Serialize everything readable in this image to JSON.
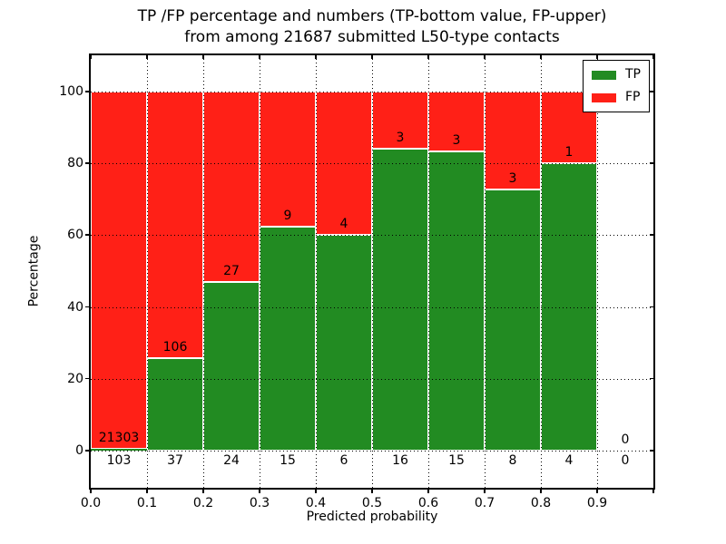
{
  "chart_data": {
    "type": "bar",
    "stacked": true,
    "title_line1": "TP /FP percentage and numbers (TP-bottom value, FP-upper)",
    "title_line2": "from among 21687 submitted L50-type contacts",
    "xlabel": "Predicted probability",
    "ylabel": "Percentage",
    "x_ticks": [
      "0.0",
      "0.1",
      "0.2",
      "0.3",
      "0.4",
      "0.5",
      "0.6",
      "0.7",
      "0.8",
      "0.9"
    ],
    "y_ticks": [
      0,
      20,
      40,
      60,
      80,
      100
    ],
    "xlim": [
      0.0,
      1.0
    ],
    "ylim": [
      -11,
      110
    ],
    "grid": true,
    "bar_width": 0.1,
    "total_contacts": 21687,
    "legend": {
      "position": "upper right",
      "entries": [
        {
          "label": "TP",
          "color": "#228b22"
        },
        {
          "label": "FP",
          "color": "#ff2017"
        }
      ]
    },
    "bins": [
      {
        "x_start": 0.0,
        "x_end": 0.1,
        "tp_count": 103,
        "fp_count": 21303,
        "tp_percent": 0.48,
        "fp_percent": 99.52
      },
      {
        "x_start": 0.1,
        "x_end": 0.2,
        "tp_count": 37,
        "fp_count": 106,
        "tp_percent": 25.87,
        "fp_percent": 74.13
      },
      {
        "x_start": 0.2,
        "x_end": 0.3,
        "tp_count": 24,
        "fp_count": 27,
        "tp_percent": 47.06,
        "fp_percent": 52.94
      },
      {
        "x_start": 0.3,
        "x_end": 0.4,
        "tp_count": 15,
        "fp_count": 9,
        "tp_percent": 62.5,
        "fp_percent": 37.5
      },
      {
        "x_start": 0.4,
        "x_end": 0.5,
        "tp_count": 6,
        "fp_count": 4,
        "tp_percent": 60.0,
        "fp_percent": 40.0
      },
      {
        "x_start": 0.5,
        "x_end": 0.6,
        "tp_count": 16,
        "fp_count": 3,
        "tp_percent": 84.21,
        "fp_percent": 15.79
      },
      {
        "x_start": 0.6,
        "x_end": 0.7,
        "tp_count": 15,
        "fp_count": 3,
        "tp_percent": 83.33,
        "fp_percent": 16.67
      },
      {
        "x_start": 0.7,
        "x_end": 0.8,
        "tp_count": 8,
        "fp_count": 3,
        "tp_percent": 72.73,
        "fp_percent": 27.27
      },
      {
        "x_start": 0.8,
        "x_end": 0.9,
        "tp_count": 4,
        "fp_count": 1,
        "tp_percent": 80.0,
        "fp_percent": 20.0
      },
      {
        "x_start": 0.9,
        "x_end": 1.0,
        "tp_count": 0,
        "fp_count": 0,
        "tp_percent": 0,
        "fp_percent": 0
      }
    ],
    "colors": {
      "tp": "#228b22",
      "fp": "#ff2017",
      "grid": "#000000",
      "text": "#000000",
      "background": "#ffffff"
    }
  }
}
